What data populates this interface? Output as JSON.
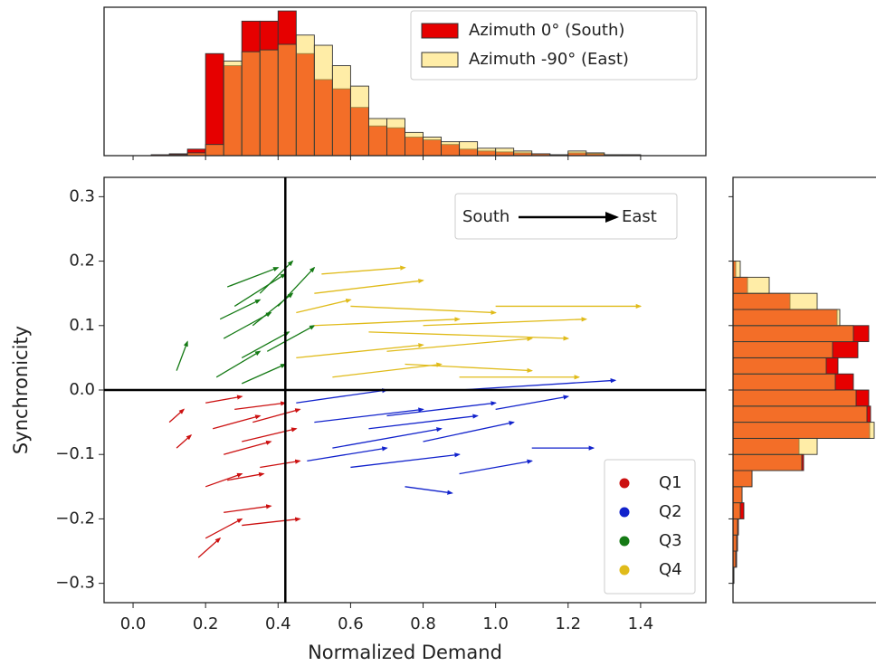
{
  "chart_data": [
    {
      "type": "histogram",
      "orientation": "vertical",
      "bins": [
        0.05,
        0.1,
        0.15,
        0.2,
        0.25,
        0.3,
        0.35,
        0.4,
        0.45,
        0.5,
        0.55,
        0.6,
        0.65,
        0.7,
        0.75,
        0.8,
        0.85,
        0.9,
        0.95,
        1.0,
        1.05,
        1.1,
        1.15,
        1.2,
        1.25,
        1.3,
        1.35,
        1.4
      ],
      "series": [
        {
          "name": "Azimuth 0° (South)",
          "color": "#e60000",
          "alpha": 1,
          "values": [
            1,
            2,
            7,
            110,
            97,
            145,
            145,
            156,
            110,
            82,
            72,
            52,
            32,
            30,
            20,
            17,
            12,
            7,
            5,
            4,
            3,
            2,
            1,
            3,
            2,
            1,
            1
          ]
        },
        {
          "name": "Azimuth -90° (East)",
          "color": "#ffdc50",
          "alpha": 0.5,
          "values": [
            0,
            1,
            3,
            12,
            102,
            112,
            114,
            120,
            130,
            119,
            97,
            75,
            40,
            40,
            25,
            20,
            15,
            15,
            8,
            8,
            5,
            2,
            1,
            5,
            3,
            1,
            1
          ]
        }
      ],
      "xlim": [
        -0.08,
        1.58
      ],
      "ylim": [
        0,
        160
      ],
      "legend": "upper right"
    },
    {
      "type": "quiver",
      "xlabel": "Normalized Demand",
      "ylabel": "Synchronicity",
      "xlim": [
        -0.08,
        1.58
      ],
      "ylim": [
        -0.33,
        0.33
      ],
      "xticks": [
        {
          "value": 0,
          "label": "0.0"
        },
        0.2,
        0.4,
        0.6,
        0.8,
        {
          "value": 1,
          "label": "1.0"
        },
        1.2,
        1.4
      ],
      "yticks": [
        {
          "value": -0.3,
          "label": "−0.3"
        },
        {
          "value": -0.2,
          "label": "−0.2"
        },
        {
          "value": -0.1,
          "label": "−0.1"
        },
        {
          "value": 0,
          "label": "0.0"
        },
        0.1,
        0.2,
        0.3
      ],
      "vline": 0.42,
      "hline": 0,
      "legend": "lower right",
      "direction_legend": {
        "from": "South",
        "to": "East"
      },
      "series": [
        {
          "name": "Q1",
          "color": "#cc1111",
          "x": [
            0.2,
            0.22,
            0.25,
            0.28,
            0.3,
            0.33,
            0.2,
            0.25,
            0.2,
            0.18,
            0.1,
            0.12,
            0.35,
            0.3,
            0.26
          ],
          "y": [
            -0.02,
            -0.06,
            -0.1,
            -0.03,
            -0.08,
            -0.05,
            -0.15,
            -0.19,
            -0.23,
            -0.26,
            -0.05,
            -0.09,
            -0.12,
            -0.21,
            -0.14
          ],
          "x_end": [
            0.3,
            0.35,
            0.38,
            0.42,
            0.45,
            0.46,
            0.3,
            0.38,
            0.3,
            0.24,
            0.14,
            0.16,
            0.46,
            0.46,
            0.36
          ],
          "y_end": [
            -0.01,
            -0.04,
            -0.08,
            -0.02,
            -0.06,
            -0.03,
            -0.13,
            -0.18,
            -0.2,
            -0.23,
            -0.03,
            -0.07,
            -0.11,
            -0.2,
            -0.13
          ]
        },
        {
          "name": "Q2",
          "color": "#1122cc",
          "x": [
            0.45,
            0.5,
            0.55,
            0.6,
            0.7,
            0.8,
            0.9,
            1.1,
            0.9,
            0.75,
            0.48,
            1.0,
            0.65
          ],
          "y": [
            -0.02,
            -0.05,
            -0.09,
            -0.12,
            -0.04,
            -0.08,
            0.0,
            -0.09,
            -0.13,
            -0.15,
            -0.11,
            -0.03,
            -0.06
          ],
          "x_end": [
            0.7,
            0.8,
            0.85,
            0.9,
            1.0,
            1.05,
            1.33,
            1.27,
            1.1,
            0.88,
            0.7,
            1.2,
            0.95
          ],
          "y_end": [
            0.0,
            -0.03,
            -0.06,
            -0.1,
            -0.02,
            -0.05,
            0.015,
            -0.09,
            -0.11,
            -0.16,
            -0.09,
            -0.01,
            -0.04
          ]
        },
        {
          "name": "Q3",
          "color": "#157a15",
          "x": [
            0.12,
            0.23,
            0.25,
            0.28,
            0.3,
            0.33,
            0.35,
            0.26,
            0.3,
            0.37,
            0.24,
            0.4
          ],
          "y": [
            0.03,
            0.02,
            0.08,
            0.13,
            0.05,
            0.1,
            0.15,
            0.16,
            0.01,
            0.06,
            0.11,
            0.13
          ],
          "x_end": [
            0.15,
            0.35,
            0.38,
            0.42,
            0.43,
            0.44,
            0.44,
            0.4,
            0.42,
            0.5,
            0.35,
            0.5
          ],
          "y_end": [
            0.075,
            0.06,
            0.12,
            0.18,
            0.09,
            0.15,
            0.2,
            0.19,
            0.04,
            0.1,
            0.14,
            0.19
          ]
        },
        {
          "name": "Q4",
          "color": "#e0bb1a",
          "x": [
            0.45,
            0.5,
            0.55,
            0.6,
            0.7,
            0.8,
            0.9,
            1.0,
            0.5,
            0.52,
            0.65,
            0.45,
            0.75
          ],
          "y": [
            0.05,
            0.1,
            0.02,
            0.13,
            0.06,
            0.1,
            0.02,
            0.13,
            0.15,
            0.18,
            0.09,
            0.12,
            0.04
          ],
          "x_end": [
            0.8,
            0.9,
            0.85,
            1.0,
            1.1,
            1.25,
            1.23,
            1.4,
            0.8,
            0.75,
            1.2,
            0.6,
            1.1
          ],
          "y_end": [
            0.07,
            0.11,
            0.04,
            0.12,
            0.08,
            0.11,
            0.02,
            0.13,
            0.17,
            0.19,
            0.08,
            0.14,
            0.03
          ]
        }
      ]
    },
    {
      "type": "histogram",
      "orientation": "horizontal",
      "bins": [
        -0.3,
        -0.275,
        -0.25,
        -0.225,
        -0.2,
        -0.175,
        -0.15,
        -0.125,
        -0.1,
        -0.075,
        -0.05,
        -0.025,
        0,
        0.025,
        0.05,
        0.075,
        0.1,
        0.125,
        0.15,
        0.175,
        0.2
      ],
      "series": [
        {
          "color": "#e60000",
          "alpha": 1,
          "values": [
            1,
            4,
            5,
            6,
            12,
            10,
            21,
            78,
            73,
            151,
            152,
            150,
            133,
            116,
            138,
            150,
            115,
            63,
            16,
            3
          ]
        },
        {
          "color": "#ffdc50",
          "alpha": 0.5,
          "values": [
            1,
            3,
            4,
            5,
            8,
            10,
            21,
            76,
            93,
            156,
            148,
            136,
            113,
            103,
            110,
            133,
            118,
            93,
            40,
            8
          ]
        }
      ],
      "xlim": [
        0,
        158
      ],
      "ylim": [
        -0.33,
        0.33
      ]
    }
  ]
}
